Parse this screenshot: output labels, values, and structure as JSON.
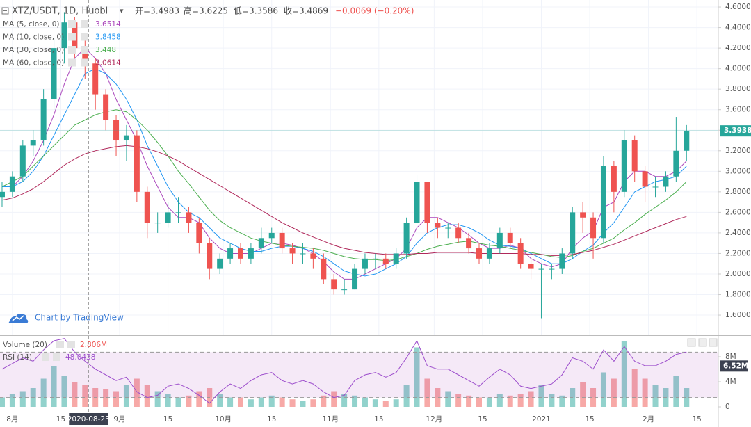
{
  "chart_data": {
    "type": "candlestick",
    "legend": {
      "symbol": "XTZ/USDT, 1D, Huobi",
      "open": "开=3.4983",
      "high": "高=3.6225",
      "low": "低=3.3586",
      "close": "收=3.4869",
      "change": "−0.0069 (−0.20%)"
    },
    "watermark": "Chart by TradingView",
    "crosshair": {
      "value": 22,
      "label": "2020-08-23"
    },
    "last_price": 3.3938,
    "up_color": "#26a69a",
    "down_color": "#ef5350",
    "xlim": [
      -3.6,
      204.2
    ],
    "xticks": [
      {
        "value": 0,
        "label": "8月"
      },
      {
        "value": 14,
        "label": "15"
      },
      {
        "value": 31,
        "label": "9月"
      },
      {
        "value": 45,
        "label": "15"
      },
      {
        "value": 61,
        "label": "10月"
      },
      {
        "value": 75,
        "label": "15"
      },
      {
        "value": 92,
        "label": "11月"
      },
      {
        "value": 106,
        "label": "15"
      },
      {
        "value": 122,
        "label": "12月"
      },
      {
        "value": 136,
        "label": "15"
      },
      {
        "value": 153,
        "label": "2021"
      },
      {
        "value": 167,
        "label": "15"
      },
      {
        "value": 184,
        "label": "2月"
      },
      {
        "value": 198,
        "label": "15"
      }
    ],
    "ylim": [
      1.404,
      4.668
    ],
    "yticks": [
      {
        "value": 1.6,
        "label": "1.6000"
      },
      {
        "value": 1.8,
        "label": "1.8000"
      },
      {
        "value": 2.0,
        "label": "2.0000"
      },
      {
        "value": 2.2,
        "label": "2.2000"
      },
      {
        "value": 2.4,
        "label": "2.4000"
      },
      {
        "value": 2.6,
        "label": "2.6000"
      },
      {
        "value": 2.8,
        "label": "2.8000"
      },
      {
        "value": 3.0,
        "label": "3.0000"
      },
      {
        "value": 3.2,
        "label": "3.2000"
      },
      {
        "value": 3.4,
        "label": "3.4000"
      },
      {
        "value": 3.6,
        "label": "3.6000"
      },
      {
        "value": 3.8,
        "label": "3.8000"
      },
      {
        "value": 4.0,
        "label": "4.0000"
      },
      {
        "value": 4.2,
        "label": "4.2000"
      },
      {
        "value": 4.4,
        "label": "4.4000"
      },
      {
        "value": 4.6,
        "label": "4.6000"
      }
    ],
    "x": [
      -3,
      0,
      3,
      6,
      9,
      12,
      15,
      18,
      21,
      24,
      27,
      30,
      33,
      36,
      39,
      42,
      45,
      48,
      51,
      54,
      57,
      60,
      63,
      66,
      69,
      72,
      75,
      78,
      81,
      84,
      87,
      90,
      93,
      96,
      99,
      102,
      105,
      108,
      111,
      114,
      117,
      120,
      123,
      126,
      129,
      132,
      135,
      138,
      141,
      144,
      147,
      150,
      153,
      156,
      159,
      162,
      165,
      168,
      171,
      174,
      177,
      180,
      183,
      186,
      189,
      192,
      195
    ],
    "open": [
      2.75,
      2.8,
      2.95,
      3.25,
      3.3,
      3.7,
      4.2,
      4.45,
      4.2,
      4.05,
      3.75,
      3.5,
      3.3,
      3.35,
      2.8,
      2.5,
      2.5,
      2.6,
      2.6,
      2.5,
      2.3,
      2.05,
      2.15,
      2.25,
      2.15,
      2.25,
      2.35,
      2.4,
      2.25,
      2.2,
      2.2,
      2.15,
      1.95,
      1.85,
      1.85,
      2.05,
      2.15,
      2.15,
      2.1,
      2.2,
      2.5,
      2.9,
      2.5,
      2.45,
      2.45,
      2.35,
      2.25,
      2.15,
      2.25,
      2.4,
      2.3,
      2.1,
      2.05,
      2.05,
      2.05,
      2.2,
      2.6,
      2.55,
      2.35,
      3.05,
      2.8,
      3.3,
      3.0,
      2.85,
      2.85,
      2.95,
      3.2
    ],
    "high": [
      2.9,
      3.0,
      3.3,
      3.4,
      3.8,
      4.3,
      4.55,
      4.5,
      4.3,
      4.1,
      3.8,
      3.55,
      3.45,
      3.4,
      2.85,
      2.6,
      2.7,
      2.75,
      2.65,
      2.55,
      2.35,
      2.2,
      2.3,
      2.3,
      2.3,
      2.45,
      2.45,
      2.45,
      2.3,
      2.3,
      2.25,
      2.2,
      2.0,
      1.95,
      2.1,
      2.2,
      2.2,
      2.2,
      2.25,
      2.55,
      2.97,
      2.9,
      2.55,
      2.5,
      2.5,
      2.4,
      2.3,
      2.3,
      2.45,
      2.45,
      2.35,
      2.15,
      2.1,
      2.1,
      2.25,
      2.65,
      2.7,
      2.6,
      3.15,
      3.1,
      3.4,
      3.35,
      3.05,
      2.95,
      3.0,
      3.53,
      3.45
    ],
    "low": [
      2.65,
      2.75,
      2.9,
      3.15,
      3.25,
      3.6,
      4.05,
      4.1,
      3.9,
      3.6,
      3.4,
      3.15,
      3.1,
      2.7,
      2.35,
      2.4,
      2.45,
      2.5,
      2.4,
      2.2,
      1.95,
      2.0,
      2.1,
      2.1,
      2.1,
      2.2,
      2.3,
      2.2,
      2.1,
      2.1,
      2.05,
      1.9,
      1.8,
      1.8,
      1.85,
      2.0,
      2.05,
      2.05,
      2.05,
      2.15,
      2.45,
      2.4,
      2.35,
      2.35,
      2.3,
      2.2,
      2.1,
      2.1,
      2.2,
      2.25,
      2.05,
      1.95,
      1.57,
      1.95,
      2.0,
      2.15,
      2.4,
      2.15,
      2.3,
      2.6,
      2.75,
      2.9,
      2.7,
      2.75,
      2.8,
      2.9,
      3.1
    ],
    "close": [
      2.8,
      2.95,
      3.25,
      3.3,
      3.7,
      4.2,
      4.45,
      4.2,
      4.05,
      3.75,
      3.5,
      3.3,
      3.35,
      2.8,
      2.5,
      2.5,
      2.6,
      2.6,
      2.5,
      2.3,
      2.05,
      2.15,
      2.25,
      2.15,
      2.25,
      2.35,
      2.4,
      2.25,
      2.2,
      2.2,
      2.15,
      1.95,
      1.85,
      1.85,
      2.05,
      2.15,
      2.15,
      2.1,
      2.2,
      2.5,
      2.9,
      2.5,
      2.45,
      2.45,
      2.35,
      2.25,
      2.15,
      2.25,
      2.4,
      2.3,
      2.1,
      2.05,
      2.05,
      2.05,
      2.2,
      2.6,
      2.55,
      2.35,
      3.05,
      2.8,
      3.3,
      3.0,
      2.85,
      2.85,
      2.95,
      3.2,
      3.39
    ],
    "series": [
      {
        "name": "MA (5, close, 0)",
        "color": "#ab47bc",
        "legend_value": 3.6514,
        "values": [
          2.85,
          2.85,
          2.95,
          3.1,
          3.3,
          3.55,
          3.85,
          4.1,
          4.2,
          4.1,
          3.95,
          3.7,
          3.5,
          3.3,
          3.05,
          2.85,
          2.65,
          2.55,
          2.55,
          2.5,
          2.35,
          2.25,
          2.2,
          2.2,
          2.2,
          2.25,
          2.3,
          2.3,
          2.28,
          2.25,
          2.2,
          2.12,
          2.02,
          1.95,
          1.95,
          2.0,
          2.05,
          2.1,
          2.15,
          2.25,
          2.45,
          2.55,
          2.55,
          2.5,
          2.45,
          2.38,
          2.3,
          2.25,
          2.25,
          2.28,
          2.25,
          2.15,
          2.1,
          2.07,
          2.1,
          2.25,
          2.35,
          2.42,
          2.65,
          2.7,
          2.9,
          3.0,
          3.0,
          2.95,
          2.95,
          3.0,
          3.1
        ]
      },
      {
        "name": "MA (10, close, 0)",
        "color": "#2196f3",
        "legend_value": 3.8458,
        "values": [
          2.85,
          2.85,
          2.9,
          3.0,
          3.15,
          3.35,
          3.55,
          3.75,
          3.95,
          4.0,
          3.95,
          3.85,
          3.7,
          3.5,
          3.25,
          3.05,
          2.85,
          2.7,
          2.6,
          2.55,
          2.45,
          2.35,
          2.3,
          2.25,
          2.22,
          2.22,
          2.25,
          2.27,
          2.27,
          2.25,
          2.22,
          2.17,
          2.1,
          2.03,
          2.0,
          1.98,
          2.0,
          2.05,
          2.1,
          2.17,
          2.3,
          2.4,
          2.45,
          2.48,
          2.48,
          2.45,
          2.4,
          2.33,
          2.28,
          2.27,
          2.25,
          2.2,
          2.15,
          2.1,
          2.1,
          2.15,
          2.22,
          2.28,
          2.4,
          2.5,
          2.65,
          2.8,
          2.85,
          2.9,
          2.92,
          2.95,
          3.05
        ]
      },
      {
        "name": "MA (30, close, 0)",
        "color": "#4caf50",
        "legend_value": 3.448,
        "values": [
          2.85,
          2.9,
          2.95,
          3.05,
          3.15,
          3.25,
          3.35,
          3.45,
          3.5,
          3.55,
          3.58,
          3.6,
          3.58,
          3.5,
          3.4,
          3.28,
          3.15,
          3.0,
          2.88,
          2.75,
          2.62,
          2.52,
          2.45,
          2.4,
          2.35,
          2.32,
          2.3,
          2.28,
          2.27,
          2.26,
          2.25,
          2.23,
          2.2,
          2.17,
          2.15,
          2.14,
          2.14,
          2.13,
          2.14,
          2.17,
          2.2,
          2.24,
          2.27,
          2.29,
          2.31,
          2.32,
          2.3,
          2.28,
          2.27,
          2.25,
          2.23,
          2.21,
          2.19,
          2.17,
          2.16,
          2.18,
          2.22,
          2.25,
          2.3,
          2.35,
          2.43,
          2.5,
          2.58,
          2.65,
          2.72,
          2.8,
          2.9
        ]
      },
      {
        "name": "MA (60, close, 0)",
        "color": "#b0285a",
        "legend_value": 3.0614,
        "values": [
          2.72,
          2.74,
          2.78,
          2.83,
          2.9,
          2.98,
          3.06,
          3.12,
          3.17,
          3.2,
          3.22,
          3.24,
          3.25,
          3.24,
          3.22,
          3.19,
          3.15,
          3.1,
          3.04,
          2.98,
          2.92,
          2.86,
          2.8,
          2.74,
          2.68,
          2.62,
          2.56,
          2.5,
          2.45,
          2.4,
          2.36,
          2.32,
          2.28,
          2.25,
          2.23,
          2.21,
          2.2,
          2.19,
          2.19,
          2.19,
          2.2,
          2.2,
          2.21,
          2.21,
          2.21,
          2.21,
          2.2,
          2.2,
          2.2,
          2.2,
          2.2,
          2.19,
          2.19,
          2.18,
          2.18,
          2.19,
          2.21,
          2.23,
          2.26,
          2.29,
          2.33,
          2.37,
          2.41,
          2.45,
          2.49,
          2.53,
          2.56
        ]
      }
    ],
    "volume": {
      "name": "Volume (20)",
      "legend_value": "2.806M",
      "marker": {
        "value": 6.52,
        "label": "6.52M"
      },
      "up_color": "rgba(38,166,154,0.5)",
      "down_color": "rgba(239,83,80,0.5)",
      "ylim": [
        0,
        11
      ],
      "yticks": [
        0,
        {
          "value": 4,
          "label": "4M"
        },
        {
          "value": 8,
          "label": "8M"
        }
      ],
      "values": [
        1.5,
        2.0,
        2.5,
        3.0,
        4.5,
        6.5,
        5.0,
        4.0,
        3.5,
        3.0,
        2.8,
        2.5,
        3.5,
        4.5,
        3.5,
        2.5,
        2.0,
        1.5,
        1.8,
        2.5,
        3.0,
        2.0,
        1.5,
        1.5,
        1.2,
        1.5,
        1.8,
        1.5,
        1.2,
        1.0,
        1.2,
        1.8,
        2.5,
        2.0,
        1.8,
        1.5,
        1.2,
        1.0,
        1.2,
        3.5,
        9.5,
        4.5,
        3.0,
        2.5,
        2.0,
        1.8,
        1.5,
        1.5,
        2.0,
        1.8,
        2.0,
        2.5,
        3.5,
        2.0,
        1.8,
        3.0,
        4.0,
        3.0,
        5.5,
        4.5,
        10.5,
        6.0,
        4.5,
        3.5,
        3.0,
        5.0,
        3.0
      ]
    },
    "rsi": {
      "name": "RSI (14)",
      "legend_value": 48.0438,
      "color": "#9c4dcc",
      "ylim": [
        20,
        80
      ],
      "band": [
        30,
        70
      ],
      "values": [
        55,
        60,
        65,
        62,
        72,
        80,
        82,
        70,
        62,
        55,
        50,
        45,
        48,
        35,
        30,
        32,
        40,
        42,
        38,
        32,
        25,
        35,
        42,
        38,
        45,
        50,
        52,
        45,
        42,
        45,
        42,
        35,
        30,
        32,
        45,
        50,
        52,
        48,
        52,
        65,
        80,
        58,
        55,
        55,
        50,
        45,
        40,
        48,
        55,
        50,
        40,
        38,
        40,
        42,
        50,
        65,
        62,
        55,
        72,
        62,
        75,
        62,
        58,
        58,
        62,
        68,
        70
      ]
    }
  }
}
